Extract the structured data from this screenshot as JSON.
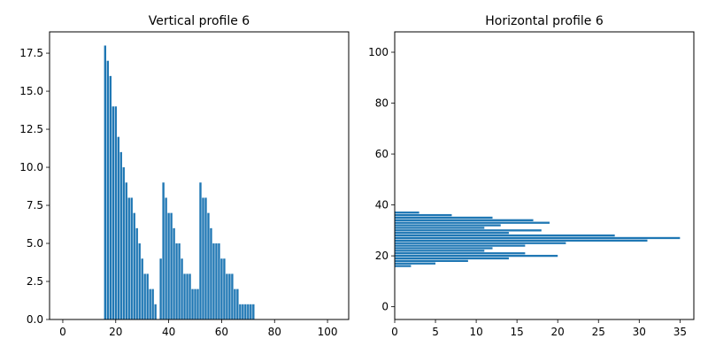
{
  "bar_color": "#1f77b4",
  "chart_data": [
    {
      "type": "bar",
      "title": "Vertical profile 6",
      "xlabel": "",
      "ylabel": "",
      "xlim": [
        -5,
        108
      ],
      "ylim": [
        0,
        18.9
      ],
      "grid": false,
      "x_ticks": [
        0,
        20,
        40,
        60,
        80,
        100
      ],
      "y_ticks": [
        0.0,
        2.5,
        5.0,
        7.5,
        10.0,
        12.5,
        15.0,
        17.5
      ],
      "x_tick_labels": [
        "0",
        "20",
        "40",
        "60",
        "80",
        "100"
      ],
      "y_tick_labels": [
        "0.0",
        "2.5",
        "5.0",
        "7.5",
        "10.0",
        "12.5",
        "15.0",
        "17.5"
      ],
      "x": [
        16,
        17,
        18,
        19,
        20,
        21,
        22,
        23,
        24,
        25,
        26,
        27,
        28,
        29,
        30,
        31,
        32,
        33,
        34,
        35,
        36,
        37,
        38,
        39,
        40,
        41,
        42,
        43,
        44,
        45,
        46,
        47,
        48,
        49,
        50,
        51,
        52,
        53,
        54,
        55,
        56,
        57,
        58,
        59,
        60,
        61,
        62,
        63,
        64,
        65,
        66,
        67,
        68,
        69,
        70,
        71,
        72
      ],
      "values": [
        18,
        17,
        16,
        14,
        14,
        12,
        11,
        10,
        9,
        8,
        8,
        7,
        6,
        5,
        4,
        3,
        3,
        2,
        2,
        1,
        0,
        4,
        9,
        8,
        7,
        7,
        6,
        5,
        5,
        4,
        3,
        3,
        3,
        2,
        2,
        2,
        9,
        8,
        8,
        7,
        6,
        5,
        5,
        5,
        4,
        4,
        3,
        3,
        3,
        2,
        2,
        1,
        1,
        1,
        1,
        1,
        1
      ]
    },
    {
      "type": "bar",
      "orientation": "horizontal",
      "title": "Horizontal profile 6",
      "xlabel": "",
      "ylabel": "",
      "xlim": [
        0,
        36.7
      ],
      "ylim": [
        -5,
        108
      ],
      "grid": false,
      "x_ticks": [
        0,
        5,
        10,
        15,
        20,
        25,
        30,
        35
      ],
      "y_ticks": [
        0,
        20,
        40,
        60,
        80,
        100
      ],
      "x_tick_labels": [
        "0",
        "5",
        "10",
        "15",
        "20",
        "25",
        "30",
        "35"
      ],
      "y_tick_labels": [
        "0",
        "20",
        "40",
        "60",
        "80",
        "100"
      ],
      "y": [
        16,
        17,
        18,
        19,
        20,
        21,
        22,
        23,
        24,
        25,
        26,
        27,
        28,
        29,
        30,
        31,
        32,
        33,
        34,
        35,
        36,
        37
      ],
      "values": [
        2,
        5,
        9,
        14,
        20,
        16,
        11,
        12,
        16,
        21,
        31,
        35,
        27,
        14,
        18,
        11,
        13,
        19,
        17,
        12,
        7,
        3
      ]
    }
  ]
}
